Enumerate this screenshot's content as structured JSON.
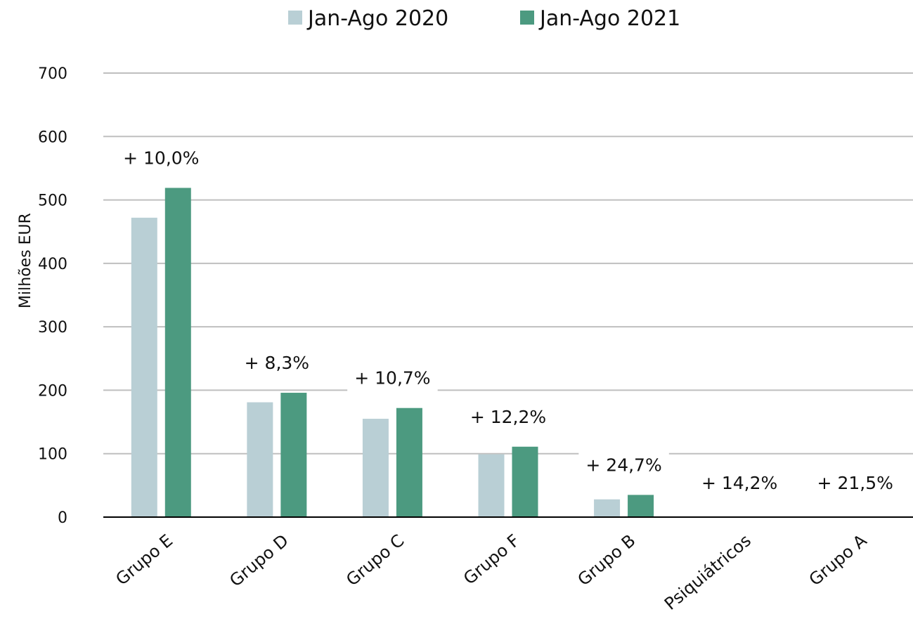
{
  "chart_data": {
    "type": "bar",
    "ylabel": "Milhões EUR",
    "xlabel": "",
    "ylim": [
      0,
      700
    ],
    "yticks": [
      0,
      100,
      200,
      300,
      400,
      500,
      600,
      700
    ],
    "grid": true,
    "legend_position": "top",
    "categories": [
      "Grupo E",
      "Grupo D",
      "Grupo C",
      "Grupo F",
      "Grupo B",
      "Psiquiátricos",
      "Grupo A"
    ],
    "series": [
      {
        "name": "Jan-Ago 2020",
        "color": "#b9cfd5",
        "values": [
          472,
          181,
          155,
          99,
          28,
          0.5,
          0.3
        ]
      },
      {
        "name": "Jan-Ago 2021",
        "color": "#4c9a80",
        "values": [
          519,
          196,
          172,
          111,
          35,
          0.6,
          0.4
        ]
      }
    ],
    "annotations": [
      "+ 10,0%",
      "+ 8,3%",
      "+ 10,7%",
      "+ 12,2%",
      "+ 24,7%",
      "+ 14,2%",
      "+ 21,5%"
    ]
  }
}
